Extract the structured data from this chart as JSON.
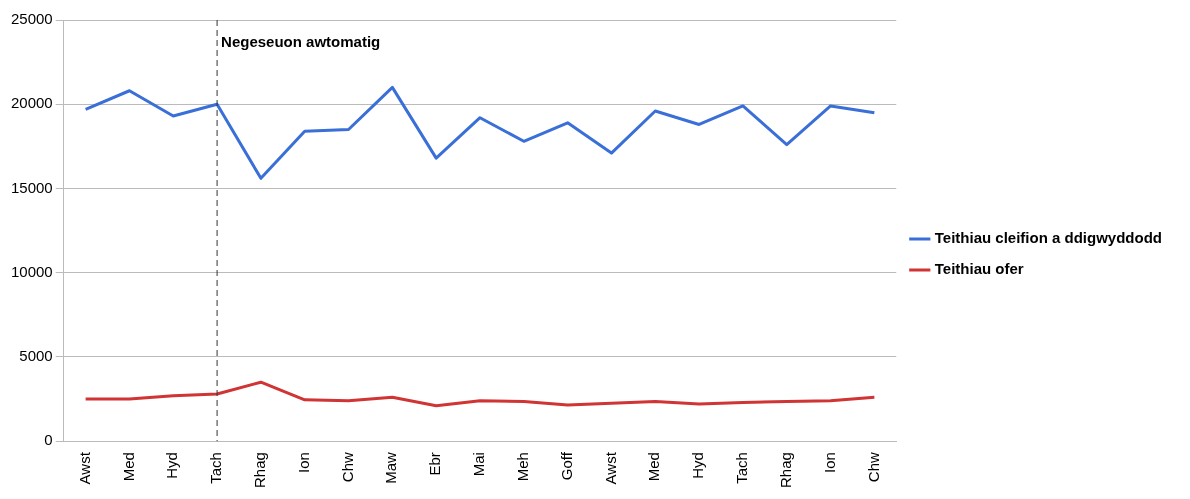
{
  "chart_data": {
    "type": "line",
    "categories": [
      "Awst",
      "Med",
      "Hyd",
      "Tach",
      "Rhag",
      "Ion",
      "Chw",
      "Maw",
      "Ebr",
      "Mai",
      "Meh",
      "Goff",
      "Awst",
      "Med",
      "Hyd",
      "Tach",
      "Rhag",
      "Ion",
      "Chw"
    ],
    "series": [
      {
        "name": "Teithiau cleifion a ddigwyddodd",
        "color": "#3a6fd8",
        "values": [
          19700,
          20800,
          19300,
          20000,
          15600,
          18400,
          18500,
          21000,
          16800,
          19200,
          17800,
          18900,
          17100,
          19600,
          18800,
          19900,
          17600,
          19900,
          19500
        ]
      },
      {
        "name": "Teithiau ofer",
        "color": "#d03434",
        "values": [
          2500,
          2500,
          2700,
          2800,
          3500,
          2450,
          2400,
          2600,
          2100,
          2400,
          2350,
          2150,
          2250,
          2350,
          2200,
          2300,
          2350,
          2400,
          2600
        ]
      }
    ],
    "ylim": [
      0,
      25000
    ],
    "yticks": [
      0,
      5000,
      10000,
      15000,
      20000,
      25000
    ],
    "grid": "y",
    "legend": "right",
    "marker": "none",
    "line_style": "solid",
    "ref_lines": [
      {
        "axis": "x",
        "value": "Tach",
        "label": "Negeseuon awtomatig",
        "color": "#333333",
        "line_style": "dashed"
      }
    ]
  }
}
